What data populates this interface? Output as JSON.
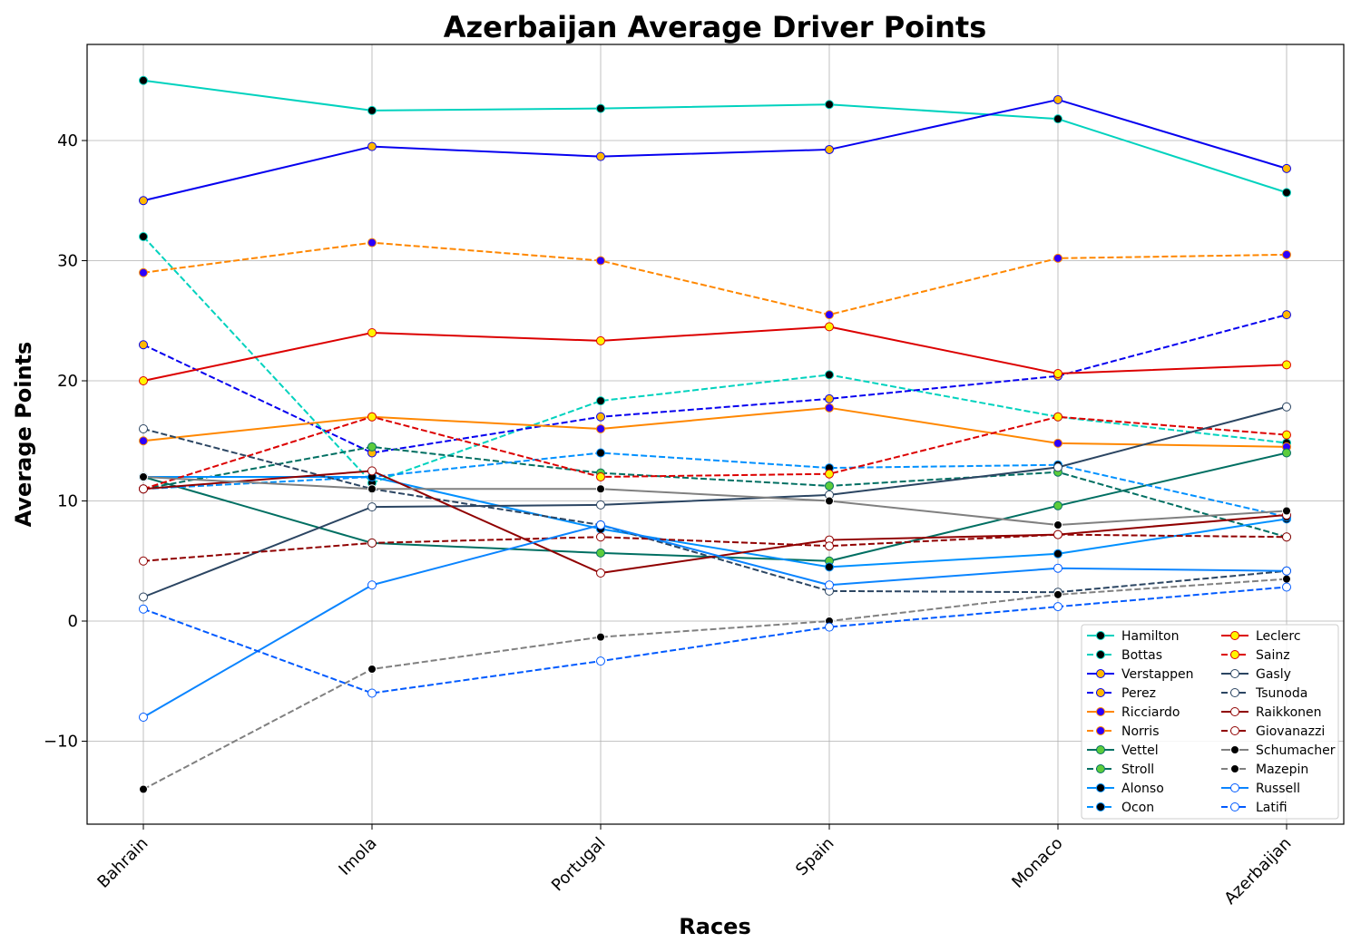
{
  "chart_data": {
    "type": "line",
    "title": "Azerbaijan Average Driver Points",
    "xlabel": "Races",
    "ylabel": "Average Points",
    "categories": [
      "Bahrain",
      "Imola",
      "Portugal",
      "Spain",
      "Monaco",
      "Azerbaijan"
    ],
    "ylim": [
      -17,
      48
    ],
    "yticks": [
      -10,
      0,
      10,
      20,
      30,
      40
    ],
    "grid": true,
    "legend_position": "bottom-right",
    "series": [
      {
        "name": "Hamilton",
        "values": [
          45,
          42.5,
          42.67,
          43,
          41.8,
          35.67
        ],
        "color": "#00d2be",
        "dash": false,
        "marker_face": "#000000",
        "marker_edge": "#00d2be"
      },
      {
        "name": "Bottas",
        "values": [
          32,
          11.5,
          18.33,
          20.5,
          17,
          14.83
        ],
        "color": "#00d2be",
        "dash": true,
        "marker_face": "#000000",
        "marker_edge": "#00d2be"
      },
      {
        "name": "Verstappen",
        "values": [
          35,
          39.5,
          38.67,
          39.25,
          43.4,
          37.67
        ],
        "color": "#0600ef",
        "dash": false,
        "marker_face": "#ffb800",
        "marker_edge": "#0600ef"
      },
      {
        "name": "Perez",
        "values": [
          23,
          14,
          17,
          18.5,
          20.4,
          25.5
        ],
        "color": "#0600ef",
        "dash": true,
        "marker_face": "#ffb800",
        "marker_edge": "#0600ef"
      },
      {
        "name": "Ricciardo",
        "values": [
          15,
          17,
          16,
          17.75,
          14.8,
          14.5
        ],
        "color": "#ff8700",
        "dash": false,
        "marker_face": "#2b00ff",
        "marker_edge": "#ff8700"
      },
      {
        "name": "Norris",
        "values": [
          29,
          31.5,
          30,
          25.5,
          30.2,
          30.5
        ],
        "color": "#ff8700",
        "dash": true,
        "marker_face": "#2b00ff",
        "marker_edge": "#ff8700"
      },
      {
        "name": "Vettel",
        "values": [
          12,
          6.5,
          5.67,
          5,
          9.6,
          14
        ],
        "color": "#006f62",
        "dash": false,
        "marker_face": "#5ccc3c",
        "marker_edge": "#006f62"
      },
      {
        "name": "Stroll",
        "values": [
          11,
          14.5,
          12.33,
          11.25,
          12.4,
          7
        ],
        "color": "#006f62",
        "dash": true,
        "marker_face": "#5ccc3c",
        "marker_edge": "#006f62"
      },
      {
        "name": "Alonso",
        "values": [
          12,
          12,
          7.67,
          4.5,
          5.6,
          8.5
        ],
        "color": "#0090ff",
        "dash": false,
        "marker_face": "#000000",
        "marker_edge": "#0090ff"
      },
      {
        "name": "Ocon",
        "values": [
          11,
          12,
          14,
          12.75,
          13,
          8.67
        ],
        "color": "#0090ff",
        "dash": true,
        "marker_face": "#000000",
        "marker_edge": "#0090ff"
      },
      {
        "name": "Leclerc",
        "values": [
          20,
          24,
          23.33,
          24.5,
          20.6,
          21.33
        ],
        "color": "#dc0000",
        "dash": false,
        "marker_face": "#fff500",
        "marker_edge": "#dc0000"
      },
      {
        "name": "Sainz",
        "values": [
          11,
          17,
          12,
          12.25,
          17,
          15.5
        ],
        "color": "#dc0000",
        "dash": true,
        "marker_face": "#fff500",
        "marker_edge": "#dc0000"
      },
      {
        "name": "Gasly",
        "values": [
          2,
          9.5,
          9.67,
          10.5,
          12.8,
          17.83
        ],
        "color": "#2b4562",
        "dash": false,
        "marker_face": "#ffffff",
        "marker_edge": "#2b4562"
      },
      {
        "name": "Tsunoda",
        "values": [
          16,
          11,
          8,
          2.5,
          2.4,
          4.17
        ],
        "color": "#2b4562",
        "dash": true,
        "marker_face": "#ffffff",
        "marker_edge": "#2b4562"
      },
      {
        "name": "Raikkonen",
        "values": [
          11,
          12.5,
          4,
          6.75,
          7.2,
          8.83
        ],
        "color": "#900000",
        "dash": false,
        "marker_face": "#ffffff",
        "marker_edge": "#900000"
      },
      {
        "name": "Giovanazzi",
        "values": [
          5,
          6.5,
          7,
          6.25,
          7.2,
          7
        ],
        "color": "#900000",
        "dash": true,
        "marker_face": "#ffffff",
        "marker_edge": "#900000"
      },
      {
        "name": "Schumacher",
        "values": [
          12,
          11,
          11,
          10,
          8,
          9.17
        ],
        "color": "#808080",
        "dash": false,
        "marker_face": "#000000",
        "marker_edge": "#ffffff"
      },
      {
        "name": "Mazepin",
        "values": [
          -14,
          -4,
          -1.33,
          0,
          2.2,
          3.5
        ],
        "color": "#808080",
        "dash": true,
        "marker_face": "#000000",
        "marker_edge": "#ffffff"
      },
      {
        "name": "Russell",
        "values": [
          -8,
          3,
          8,
          3,
          4.4,
          4.17
        ],
        "color": "#005aff",
        "dash": false,
        "marker_face": "#ffffff",
        "marker_edge": "#005aff",
        "line_color": "#0a84ff"
      },
      {
        "name": "Latifi",
        "values": [
          1,
          -6,
          -3.33,
          -0.5,
          1.2,
          2.83
        ],
        "color": "#005aff",
        "dash": true,
        "marker_face": "#ffffff",
        "marker_edge": "#005aff"
      }
    ]
  }
}
